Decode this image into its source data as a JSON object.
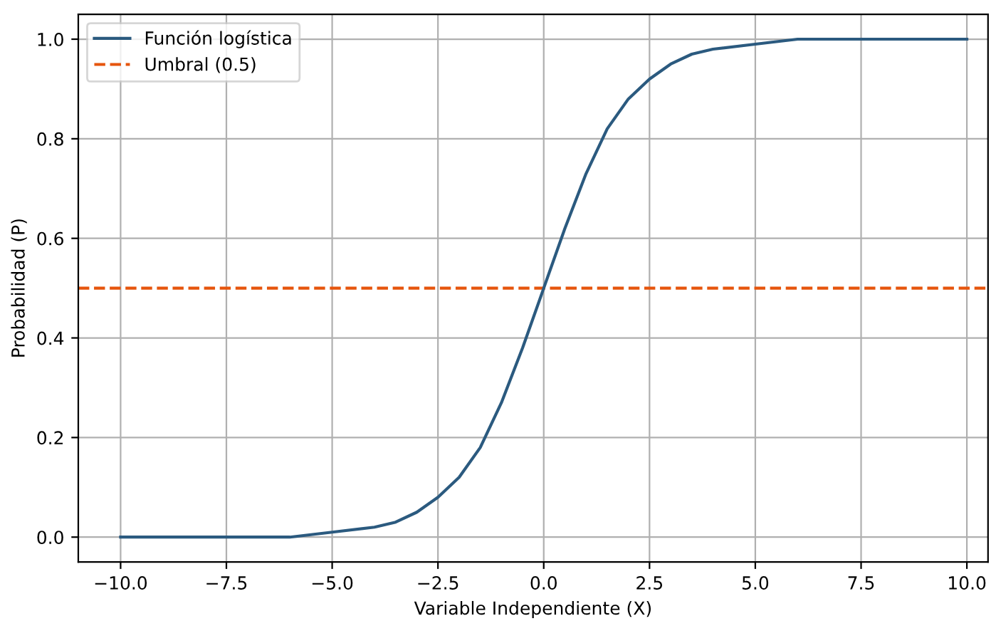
{
  "chart_data": {
    "type": "line",
    "xlabel": "Variable Independiente (X)",
    "ylabel": "Probabilidad (P)",
    "x": [
      -10,
      -8,
      -6,
      -5,
      -4,
      -3.5,
      -3,
      -2.5,
      -2,
      -1.5,
      -1,
      -0.5,
      0,
      0.5,
      1,
      1.5,
      2,
      2.5,
      3,
      3.5,
      4,
      5,
      6,
      8,
      10
    ],
    "series": [
      {
        "name": "Función logística",
        "color": "#2b5a7f",
        "values": [
          0,
          0,
          0,
          0.01,
          0.02,
          0.03,
          0.05,
          0.08,
          0.12,
          0.18,
          0.27,
          0.38,
          0.5,
          0.62,
          0.73,
          0.82,
          0.88,
          0.92,
          0.95,
          0.97,
          0.98,
          0.99,
          1,
          1,
          1
        ]
      }
    ],
    "ref_lines": [
      {
        "axis": "y",
        "value": 0.5,
        "label": "Umbral (0.5)",
        "color": "#e6550d",
        "line_style": "dashed"
      }
    ],
    "xlim": [
      -11,
      10.5
    ],
    "ylim": [
      -0.05,
      1.05
    ],
    "xticks": [
      {
        "value": -10,
        "label": "−10.0"
      },
      {
        "value": -7.5,
        "label": "−7.5"
      },
      {
        "value": -5,
        "label": "−5.0"
      },
      {
        "value": -2.5,
        "label": "−2.5"
      },
      {
        "value": 0,
        "label": "0.0"
      },
      {
        "value": 2.5,
        "label": "2.5"
      },
      {
        "value": 5,
        "label": "5.0"
      },
      {
        "value": 7.5,
        "label": "7.5"
      },
      {
        "value": 10,
        "label": "10.0"
      }
    ],
    "yticks": [
      {
        "value": 0,
        "label": "0.0"
      },
      {
        "value": 0.2,
        "label": "0.2"
      },
      {
        "value": 0.4,
        "label": "0.4"
      },
      {
        "value": 0.6,
        "label": "0.6"
      },
      {
        "value": 0.8,
        "label": "0.8"
      },
      {
        "value": 1,
        "label": "1.0"
      }
    ],
    "grid": true,
    "legend": "top left",
    "marker": "none",
    "line_style": "solid"
  }
}
